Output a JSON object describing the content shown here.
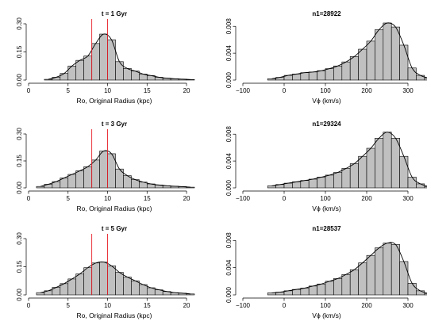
{
  "colors": {
    "bar_fill": "#c0c0c0",
    "bar_stroke": "#000000",
    "marker_line": "#e8202a",
    "curve": "#000000"
  },
  "chart_data": [
    {
      "type": "bar",
      "title": "t = 1 Gyr",
      "xlabel": "Ro, Original Radius (kpc)",
      "ylabel": "",
      "xlim": [
        0,
        21
      ],
      "ylim": [
        0,
        0.3
      ],
      "xticks": [
        "0",
        "5",
        "10",
        "15",
        "20"
      ],
      "yticks": [
        "0.00",
        "0.15",
        "0.30"
      ],
      "bin_start": 2,
      "bin_width": 1,
      "values": [
        0.004,
        0.015,
        0.035,
        0.075,
        0.105,
        0.128,
        0.195,
        0.245,
        0.215,
        0.098,
        0.062,
        0.048,
        0.032,
        0.024,
        0.015,
        0.01,
        0.007,
        0.005,
        0.003
      ],
      "markers_x": [
        8,
        10
      ],
      "curve": true
    },
    {
      "type": "bar",
      "title": "n1=28922",
      "xlabel": "Vϕ (km/s)",
      "ylabel": "",
      "xlim": [
        -100,
        300
      ],
      "ylim": [
        0,
        0.0085
      ],
      "xticks": [
        "−100",
        "0",
        "100",
        "200",
        "300"
      ],
      "yticks": [
        "0.000",
        "0.004",
        "0.008"
      ],
      "bin_start": -40,
      "bin_width": 20,
      "values": [
        0.0002,
        0.0004,
        0.0007,
        0.0009,
        0.0011,
        0.0012,
        0.0014,
        0.0017,
        0.0021,
        0.0027,
        0.0035,
        0.0046,
        0.0058,
        0.0075,
        0.0085,
        0.0079,
        0.0052,
        0.0018,
        0.0007,
        0.0003
      ],
      "markers_x": [],
      "curve": true
    },
    {
      "type": "bar",
      "title": "t = 3 Gyr",
      "xlabel": "Ro, Original Radius (kpc)",
      "ylabel": "",
      "xlim": [
        0,
        21
      ],
      "ylim": [
        0,
        0.3
      ],
      "xticks": [
        "0",
        "5",
        "10",
        "15",
        "20"
      ],
      "yticks": [
        "0.00",
        "0.15",
        "0.30"
      ],
      "bin_start": 1,
      "bin_width": 1,
      "values": [
        0.008,
        0.02,
        0.035,
        0.055,
        0.075,
        0.095,
        0.118,
        0.155,
        0.205,
        0.19,
        0.105,
        0.068,
        0.046,
        0.032,
        0.022,
        0.016,
        0.012,
        0.009,
        0.007,
        0.004
      ],
      "markers_x": [
        8,
        10
      ],
      "curve": true
    },
    {
      "type": "bar",
      "title": "n1=29324",
      "xlabel": "Vϕ (km/s)",
      "ylabel": "",
      "xlim": [
        -100,
        300
      ],
      "ylim": [
        0,
        0.0085
      ],
      "xticks": [
        "−100",
        "0",
        "100",
        "200",
        "300"
      ],
      "yticks": [
        "0.000",
        "0.004",
        "0.008"
      ],
      "bin_start": -40,
      "bin_width": 20,
      "values": [
        0.0003,
        0.0005,
        0.0007,
        0.0009,
        0.0011,
        0.0013,
        0.0016,
        0.0019,
        0.0023,
        0.0029,
        0.0036,
        0.0047,
        0.0059,
        0.0074,
        0.0083,
        0.0074,
        0.0047,
        0.0016,
        0.0006,
        0.0002
      ],
      "markers_x": [],
      "curve": true
    },
    {
      "type": "bar",
      "title": "t = 5  Gyr",
      "xlabel": "Ro, Original Radius (kpc)",
      "ylabel": "",
      "xlim": [
        0,
        21
      ],
      "ylim": [
        0,
        0.3
      ],
      "xticks": [
        "0",
        "5",
        "10",
        "15",
        "20"
      ],
      "yticks": [
        "0.00",
        "0.15",
        "0.30"
      ],
      "bin_start": 1,
      "bin_width": 1,
      "values": [
        0.012,
        0.022,
        0.04,
        0.06,
        0.085,
        0.112,
        0.145,
        0.17,
        0.175,
        0.155,
        0.12,
        0.095,
        0.075,
        0.055,
        0.038,
        0.027,
        0.018,
        0.012,
        0.009,
        0.005
      ],
      "markers_x": [
        8,
        10
      ],
      "curve": true
    },
    {
      "type": "bar",
      "title": "n1=28537",
      "xlabel": "Vϕ (km/s)",
      "ylabel": "",
      "xlim": [
        -100,
        300
      ],
      "ylim": [
        0,
        0.0085
      ],
      "xticks": [
        "−100",
        "0",
        "100",
        "200",
        "300"
      ],
      "yticks": [
        "0.000",
        "0.004",
        "0.008"
      ],
      "bin_start": -40,
      "bin_width": 20,
      "values": [
        0.0003,
        0.0004,
        0.0006,
        0.0008,
        0.001,
        0.0013,
        0.0016,
        0.002,
        0.0024,
        0.003,
        0.0037,
        0.0047,
        0.0058,
        0.0069,
        0.0076,
        0.0074,
        0.0049,
        0.0017,
        0.0006,
        0.0002
      ],
      "markers_x": [],
      "curve": true
    }
  ]
}
